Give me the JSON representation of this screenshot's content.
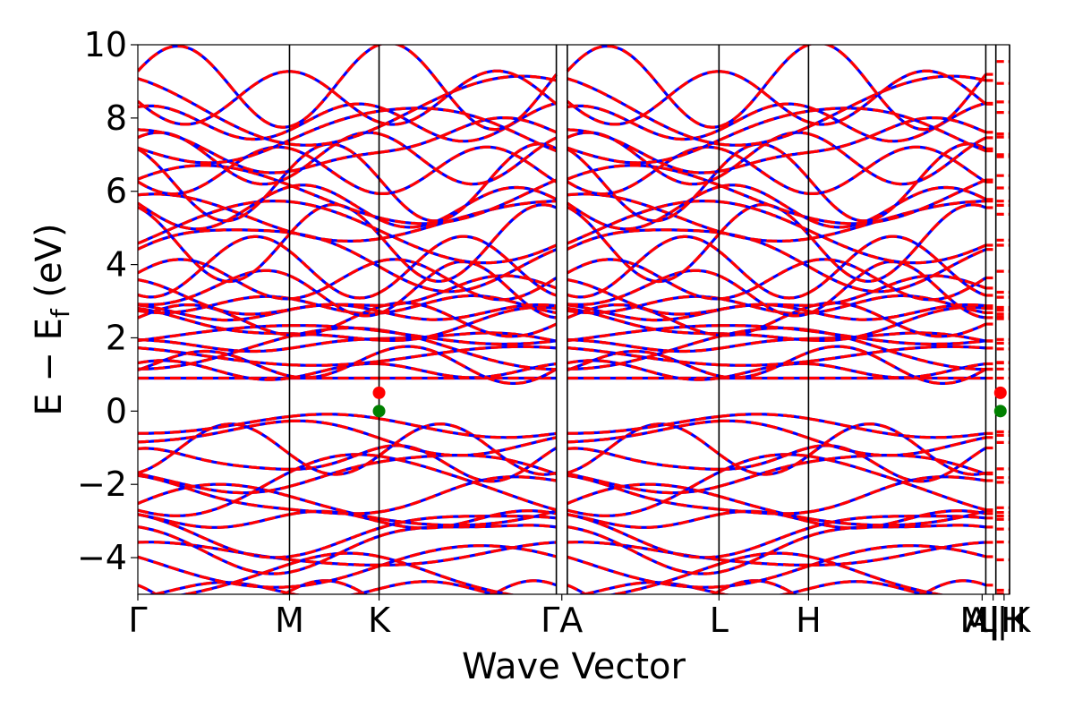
{
  "chart_data": {
    "type": "line",
    "title": "",
    "xlabel": "Wave Vector",
    "ylabel": {
      "main": "E − E",
      "sub": "f",
      "unit": " (eV)"
    },
    "ylim": [
      -5,
      10
    ],
    "yticks": [
      -4,
      -2,
      0,
      2,
      4,
      6,
      8,
      10
    ],
    "ytick_labels": [
      "−4",
      "−2",
      "0",
      "2",
      "4",
      "6",
      "8",
      "10"
    ],
    "x_range": [
      0,
      4.77
    ],
    "kpoints": [
      {
        "label": "Γ",
        "x": 0.0,
        "line": false
      },
      {
        "label": "M",
        "x": 0.83,
        "line": true
      },
      {
        "label": "K",
        "x": 1.32,
        "line": true
      },
      {
        "label": "Γ",
        "x": 2.29,
        "line": true
      },
      {
        "label": "A",
        "x": 2.35,
        "line": true
      },
      {
        "label": "L",
        "x": 3.18,
        "line": true
      },
      {
        "label": "H",
        "x": 3.67,
        "line": true
      },
      {
        "label": "A",
        "x": 4.64,
        "line": true
      },
      {
        "label": "M",
        "x": 4.64,
        "line": false
      },
      {
        "label": "|",
        "x": 4.695,
        "line": true
      },
      {
        "label": "L",
        "x": 4.7,
        "line": false
      },
      {
        "label": "|",
        "x": 4.77,
        "line": true
      },
      {
        "label": "H",
        "x": 4.7,
        "line": false
      },
      {
        "label": "K",
        "x": 4.77,
        "line": false
      }
    ],
    "tick_text": [
      {
        "text": "Γ",
        "x": 0.0
      },
      {
        "text": "M",
        "x": 0.83
      },
      {
        "text": "K",
        "x": 1.32
      },
      {
        "text": "ΓA",
        "x": 2.32
      },
      {
        "text": "L",
        "x": 3.18
      },
      {
        "text": "H",
        "x": 3.67
      },
      {
        "text": "A|",
        "x": 4.62
      },
      {
        "text": "M|H",
        "x": 4.68
      },
      {
        "text": "L|K",
        "x": 4.74
      }
    ],
    "series": [
      {
        "style": "solid",
        "color": "#0000ff"
      },
      {
        "style": "dashed",
        "color": "#ff0000"
      }
    ],
    "markers": [
      {
        "x": 1.32,
        "y": 0.0,
        "color": "#008000"
      },
      {
        "x": 1.32,
        "y": 0.5,
        "color": "#ff0000"
      },
      {
        "x": 4.72,
        "y": 0.0,
        "color": "#008000"
      },
      {
        "x": 4.72,
        "y": 0.5,
        "color": "#ff0000"
      }
    ],
    "grid": false
  }
}
